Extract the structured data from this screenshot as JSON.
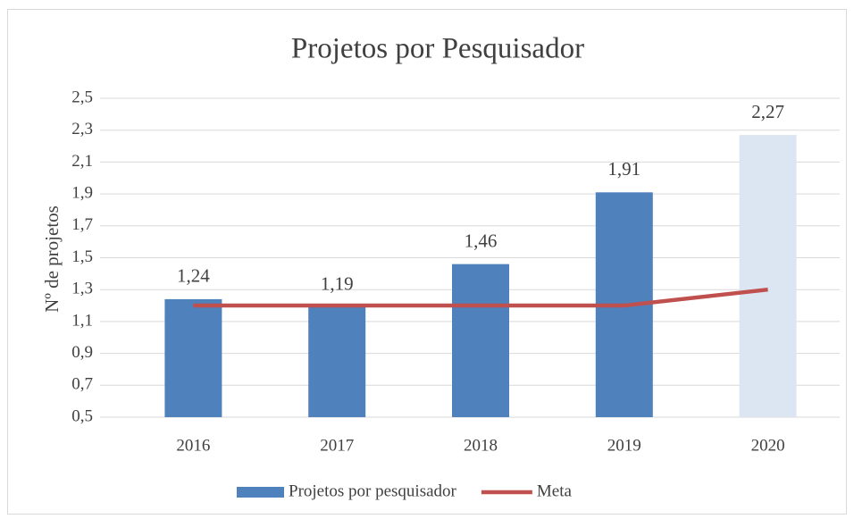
{
  "chart_data": {
    "type": "bar",
    "title": "Projetos por Pesquisador",
    "y_label": "Nº de projetos",
    "categories": [
      "2016",
      "2017",
      "2018",
      "2019",
      "2020"
    ],
    "series": [
      {
        "name": "Projetos por pesquisador",
        "type": "bar",
        "color": "#4f81bd",
        "colors": [
          "#4f81bd",
          "#4f81bd",
          "#4f81bd",
          "#4f81bd",
          "#dce6f2"
        ],
        "values": [
          1.24,
          1.19,
          1.46,
          1.91,
          2.27
        ],
        "value_labels": [
          "1,24",
          "1,19",
          "1,46",
          "1,91",
          "2,27"
        ]
      },
      {
        "name": "Meta",
        "type": "line",
        "color": "#c0504d",
        "values": [
          1.2,
          1.2,
          1.2,
          1.2,
          1.3
        ]
      }
    ],
    "ylim": [
      0.5,
      2.5
    ],
    "yticks": [
      {
        "value": 0.5,
        "label": "0,5"
      },
      {
        "value": 0.7,
        "label": "0,7"
      },
      {
        "value": 0.9,
        "label": "0,9"
      },
      {
        "value": 1.1,
        "label": "1,1"
      },
      {
        "value": 1.3,
        "label": "1,3"
      },
      {
        "value": 1.5,
        "label": "1,5"
      },
      {
        "value": 1.7,
        "label": "1,7"
      },
      {
        "value": 1.9,
        "label": "1,9"
      },
      {
        "value": 2.1,
        "label": "2,1"
      },
      {
        "value": 2.3,
        "label": "2,3"
      },
      {
        "value": 2.5,
        "label": "2,5"
      }
    ],
    "grid": true,
    "legend": "bottom"
  }
}
